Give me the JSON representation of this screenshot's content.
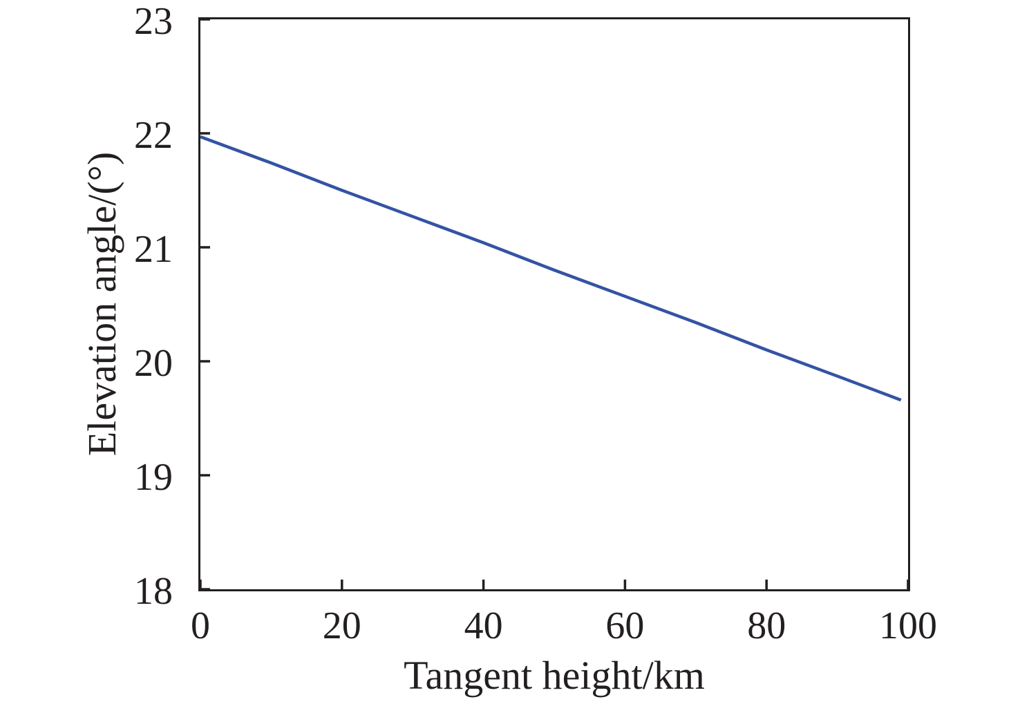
{
  "figure": {
    "background": "#ffffff"
  },
  "colors": {
    "axis": "#231f20",
    "text": "#231f20",
    "line": "#3453a4"
  },
  "chart_data": {
    "type": "line",
    "title": "",
    "xlabel": "Tangent height/km",
    "ylabel": "Elevation angle/(°)",
    "xlim": [
      0,
      100
    ],
    "ylim": [
      18,
      23
    ],
    "x_ticks": [
      0,
      20,
      40,
      60,
      80,
      100
    ],
    "y_ticks": [
      18,
      19,
      20,
      21,
      22,
      23
    ],
    "grid": false,
    "legend_position": "none",
    "frame": "full-box",
    "tick_direction": "in",
    "series": [
      {
        "name": "elevation-angle-vs-tangent-height",
        "color": "#3453a4",
        "x": [
          0,
          10,
          20,
          30,
          40,
          50,
          60,
          70,
          80,
          90,
          99
        ],
        "y": [
          21.97,
          21.74,
          21.5,
          21.27,
          21.04,
          20.8,
          20.57,
          20.34,
          20.1,
          19.87,
          19.66
        ]
      }
    ]
  }
}
